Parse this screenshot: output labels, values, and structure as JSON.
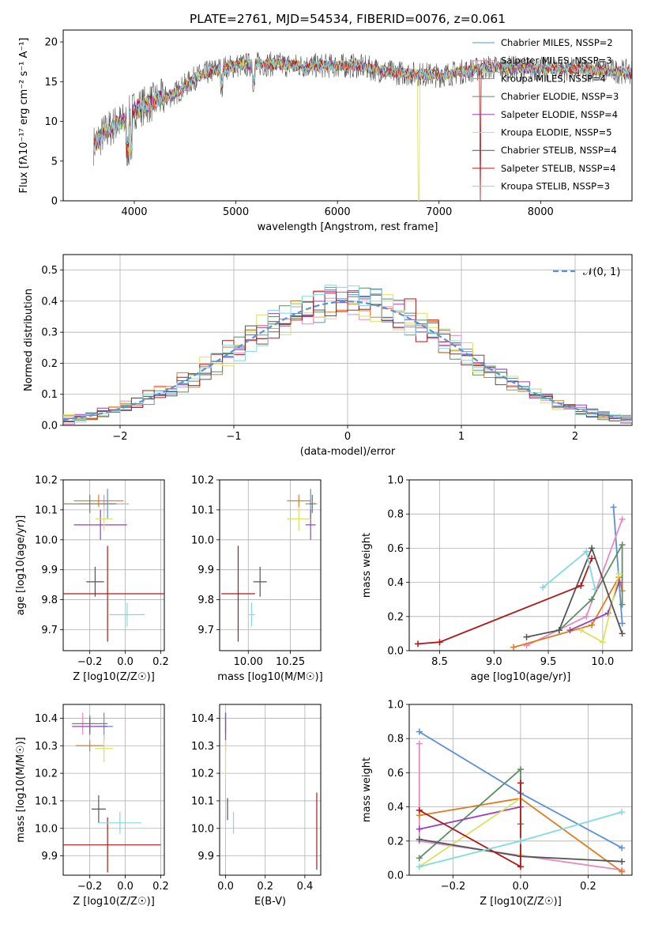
{
  "title": "PLATE=2761, MJD=54534, FIBERID=0076, z=0.061",
  "colors": [
    "#5b8fd6",
    "#e58ac4",
    "#e07b20",
    "#5e8e62",
    "#9a3fbf",
    "#d9e25a",
    "#555555",
    "#b01818",
    "#7fdbe0"
  ],
  "chart_data": [
    {
      "id": "spectrum",
      "type": "line",
      "xlabel": "wavelength [Angstrom, rest frame]",
      "ylabel": "Flux [fλ10⁻¹⁷ erg cm⁻² s⁻¹ A⁻¹]",
      "xlim": [
        3300,
        8900
      ],
      "ylim": [
        0,
        21.5
      ],
      "xticks": [
        "4000",
        "5000",
        "6000",
        "7000",
        "8000"
      ],
      "yticks": [
        "0",
        "5",
        "10",
        "15",
        "20"
      ],
      "legend_position": "top-right",
      "series": [
        {
          "name": "Chabrier MILES, NSSP=2"
        },
        {
          "name": "Salpeter MILES, NSSP=3"
        },
        {
          "name": "Kroupa MILES, NSSP=4"
        },
        {
          "name": "Chabrier ELODIE, NSSP=3"
        },
        {
          "name": "Salpeter ELODIE, NSSP=4"
        },
        {
          "name": "Kroupa ELODIE, NSSP=5"
        },
        {
          "name": "Chabrier STELIB, NSSP=4"
        },
        {
          "name": "Salpeter STELIB, NSSP=4"
        },
        {
          "name": "Kroupa STELIB, NSSP=3"
        }
      ],
      "continuum": {
        "x": [
          3600,
          3700,
          3800,
          3900,
          4000,
          4200,
          4400,
          4600,
          4800,
          5000,
          5200,
          5400,
          5600,
          5800,
          6000,
          6200,
          6500,
          7000,
          7500,
          8000,
          8500,
          8900
        ],
        "y": [
          7,
          8.5,
          9.5,
          10,
          11.5,
          12.5,
          13.5,
          15.5,
          16.5,
          17,
          17.2,
          17.2,
          17,
          17,
          17,
          17,
          16.2,
          15.8,
          16.8,
          16.6,
          16.5,
          16.2
        ]
      }
    },
    {
      "id": "residuals",
      "type": "histogram",
      "xlabel": "(data-model)/error",
      "ylabel": "Normed distribution",
      "xlim": [
        -2.5,
        2.5
      ],
      "ylim": [
        0,
        0.55
      ],
      "xticks": [
        "−2",
        "−1",
        "0",
        "1",
        "2"
      ],
      "yticks": [
        "0.0",
        "0.1",
        "0.2",
        "0.3",
        "0.4",
        "0.5"
      ],
      "reference": {
        "name": "𝒩(0, 1)",
        "style": "dashed"
      },
      "bin_width": 0.1,
      "approx_curve": "gaussian"
    },
    {
      "id": "age-vs-Z",
      "type": "scatter",
      "xlabel": "Z [log10(Z/Z☉)]",
      "ylabel": "age  [log10(age/yr)]",
      "xlim": [
        -0.35,
        0.22
      ],
      "ylim": [
        9.63,
        10.2
      ],
      "xticks": [
        "−0.2",
        "0.0",
        "0.2"
      ],
      "yticks": [
        "9.7",
        "9.8",
        "9.9",
        "10.0",
        "10.1",
        "10.2"
      ],
      "points": [
        {
          "x": -0.1,
          "y": 10.12,
          "xerr": 0.05,
          "yerr": 0.05
        },
        {
          "x": -0.12,
          "y": 10.12,
          "xerr": 0.14,
          "yerr": 0.03
        },
        {
          "x": -0.15,
          "y": 10.13,
          "xerr": 0.14,
          "yerr": 0.02
        },
        {
          "x": -0.2,
          "y": 10.12,
          "xerr": 0.15,
          "yerr": 0.03
        },
        {
          "x": -0.14,
          "y": 10.05,
          "xerr": 0.15,
          "yerr": 0.05
        },
        {
          "x": -0.12,
          "y": 10.07,
          "xerr": 0.05,
          "yerr": 0.04
        },
        {
          "x": -0.17,
          "y": 9.86,
          "xerr": 0.05,
          "yerr": 0.05
        },
        {
          "x": -0.1,
          "y": 9.82,
          "xerr": 0.32,
          "yerr": 0.16
        },
        {
          "x": 0.01,
          "y": 9.75,
          "xerr": 0.1,
          "yerr": 0.04
        }
      ]
    },
    {
      "id": "age-vs-mass",
      "type": "scatter",
      "xlabel": "mass [log10(M/M☉)]",
      "ylabel": "",
      "xlim": [
        9.83,
        10.43
      ],
      "ylim": [
        9.63,
        10.2
      ],
      "xticks": [
        "10.00",
        "10.25"
      ],
      "yticks": [
        "9.7",
        "9.8",
        "9.9",
        "10.0",
        "10.1",
        "10.2"
      ],
      "points": [
        {
          "x": 10.37,
          "y": 10.12,
          "xerr": 0.03,
          "yerr": 0.05
        },
        {
          "x": 10.38,
          "y": 10.12,
          "xerr": 0.03,
          "yerr": 0.03
        },
        {
          "x": 10.3,
          "y": 10.13,
          "xerr": 0.07,
          "yerr": 0.02
        },
        {
          "x": 10.38,
          "y": 10.12,
          "xerr": 0.02,
          "yerr": 0.03
        },
        {
          "x": 10.37,
          "y": 10.05,
          "xerr": 0.03,
          "yerr": 0.05
        },
        {
          "x": 10.3,
          "y": 10.07,
          "xerr": 0.07,
          "yerr": 0.04
        },
        {
          "x": 10.07,
          "y": 9.86,
          "xerr": 0.04,
          "yerr": 0.05
        },
        {
          "x": 9.94,
          "y": 9.82,
          "xerr": 0.1,
          "yerr": 0.16
        },
        {
          "x": 10.02,
          "y": 9.75,
          "xerr": 0.02,
          "yerr": 0.04
        }
      ]
    },
    {
      "id": "mass-weight-vs-age",
      "type": "line",
      "xlabel": "age  [log10(age/yr)]",
      "ylabel": "mass weight",
      "xlim": [
        8.22,
        10.27
      ],
      "ylim": [
        0,
        1
      ],
      "xticks": [
        "8.5",
        "9.0",
        "9.5",
        "10.0"
      ],
      "yticks": [
        "0.0",
        "0.2",
        "0.4",
        "0.6",
        "0.8",
        "1.0"
      ],
      "series": [
        {
          "x": [
            10.1,
            10.18
          ],
          "y": [
            0.84,
            0.16
          ]
        },
        {
          "x": [
            9.3,
            9.85,
            10.18
          ],
          "y": [
            0.03,
            0.2,
            0.77
          ]
        },
        {
          "x": [
            9.18,
            9.9,
            10.15,
            10.18
          ],
          "y": [
            0.02,
            0.15,
            0.43,
            0.35
          ]
        },
        {
          "x": [
            9.6,
            9.9,
            10.18,
            10.18
          ],
          "y": [
            0.12,
            0.3,
            0.62,
            0.27
          ]
        },
        {
          "x": [
            9.7,
            10.05,
            10.15
          ],
          "y": [
            0.12,
            0.22,
            0.4
          ]
        },
        {
          "x": [
            9.8,
            10.0,
            10.15
          ],
          "y": [
            0.12,
            0.05,
            0.45
          ]
        },
        {
          "x": [
            9.3,
            9.6,
            9.9,
            10.18
          ],
          "y": [
            0.08,
            0.12,
            0.6,
            0.1
          ]
        },
        {
          "x": [
            8.3,
            8.5,
            9.8,
            9.9
          ],
          "y": [
            0.04,
            0.05,
            0.38,
            0.54
          ]
        },
        {
          "x": [
            9.45,
            9.85,
            9.93
          ],
          "y": [
            0.37,
            0.58,
            0.36
          ]
        }
      ]
    },
    {
      "id": "mass-vs-Z",
      "type": "scatter",
      "xlabel": "Z [log10(Z/Z☉)]",
      "ylabel": "mass [log10(M/M☉)]",
      "xlim": [
        -0.35,
        0.22
      ],
      "ylim": [
        9.83,
        10.45
      ],
      "xticks": [
        "−0.2",
        "0.0",
        "0.2"
      ],
      "yticks": [
        "9.9",
        "10.0",
        "10.1",
        "10.2",
        "10.3",
        "10.4"
      ],
      "points": [
        {
          "x": -0.12,
          "y": 10.37,
          "xerr": 0.05,
          "yerr": 0.05
        },
        {
          "x": -0.24,
          "y": 10.38,
          "xerr": 0.02,
          "yerr": 0.04
        },
        {
          "x": -0.2,
          "y": 10.3,
          "xerr": 0.08,
          "yerr": 0.02
        },
        {
          "x": -0.2,
          "y": 10.38,
          "xerr": 0.1,
          "yerr": 0.03
        },
        {
          "x": -0.2,
          "y": 10.37,
          "xerr": 0.1,
          "yerr": 0.03
        },
        {
          "x": -0.12,
          "y": 10.29,
          "xerr": 0.05,
          "yerr": 0.05
        },
        {
          "x": -0.15,
          "y": 10.07,
          "xerr": 0.04,
          "yerr": 0.05
        },
        {
          "x": -0.1,
          "y": 9.94,
          "xerr": 0.3,
          "yerr": 0.1
        },
        {
          "x": -0.03,
          "y": 10.02,
          "xerr": 0.12,
          "yerr": 0.04
        }
      ]
    },
    {
      "id": "mass-vs-EBV",
      "type": "scatter",
      "xlabel": "E(B-V)",
      "ylabel": "",
      "xlim": [
        -0.03,
        0.48
      ],
      "ylim": [
        9.83,
        10.45
      ],
      "xticks": [
        "0.0",
        "0.2",
        "0.4"
      ],
      "yticks": [
        "9.9",
        "10.0",
        "10.1",
        "10.2",
        "10.3",
        "10.4"
      ],
      "points": [
        {
          "x": 0.0,
          "y": 10.37,
          "xerr": 0,
          "yerr": 0.05
        },
        {
          "x": 0.0,
          "y": 10.38,
          "xerr": 0,
          "yerr": 0.04
        },
        {
          "x": 0.0,
          "y": 10.3,
          "xerr": 0,
          "yerr": 0.02
        },
        {
          "x": 0.0,
          "y": 10.38,
          "xerr": 0,
          "yerr": 0.03
        },
        {
          "x": 0.0,
          "y": 10.37,
          "xerr": 0,
          "yerr": 0.05
        },
        {
          "x": 0.0,
          "y": 10.25,
          "xerr": 0,
          "yerr": 0.07
        },
        {
          "x": 0.01,
          "y": 10.07,
          "xerr": 0,
          "yerr": 0.04
        },
        {
          "x": 0.46,
          "y": 9.99,
          "xerr": 0,
          "yerr": 0.14
        },
        {
          "x": 0.04,
          "y": 10.02,
          "xerr": 0,
          "yerr": 0.04
        }
      ]
    },
    {
      "id": "mass-weight-vs-Z",
      "type": "line",
      "xlabel": "Z [log10(Z/Z☉)]",
      "ylabel": "mass weight",
      "xlim": [
        -0.33,
        0.33
      ],
      "ylim": [
        0,
        1
      ],
      "xticks": [
        "−0.2",
        "0.0",
        "0.2"
      ],
      "yticks": [
        "0.0",
        "0.2",
        "0.4",
        "0.6",
        "0.8",
        "1.0"
      ],
      "series": [
        {
          "x": [
            -0.3,
            0.0,
            0.3
          ],
          "y": [
            0.84,
            0.48,
            0.16
          ]
        },
        {
          "x": [
            -0.3,
            -0.3,
            0.3
          ],
          "y": [
            0.77,
            0.2,
            0.03
          ]
        },
        {
          "x": [
            -0.3,
            0.0,
            0.3
          ],
          "y": [
            0.35,
            0.45,
            0.02
          ]
        },
        {
          "x": [
            -0.3,
            0.0,
            0.0
          ],
          "y": [
            0.1,
            0.62,
            0.3
          ]
        },
        {
          "x": [
            -0.3,
            0.0
          ],
          "y": [
            0.27,
            0.4
          ]
        },
        {
          "x": [
            -0.3,
            0.0,
            0.0
          ],
          "y": [
            0.05,
            0.45,
            0.12
          ]
        },
        {
          "x": [
            -0.3,
            0.0,
            0.3
          ],
          "y": [
            0.21,
            0.11,
            0.08
          ]
        },
        {
          "x": [
            -0.3,
            0.0,
            0.0
          ],
          "y": [
            0.38,
            0.05,
            0.54
          ]
        },
        {
          "x": [
            -0.3,
            0.0,
            0.3
          ],
          "y": [
            0.05,
            0.2,
            0.37
          ]
        }
      ]
    }
  ]
}
